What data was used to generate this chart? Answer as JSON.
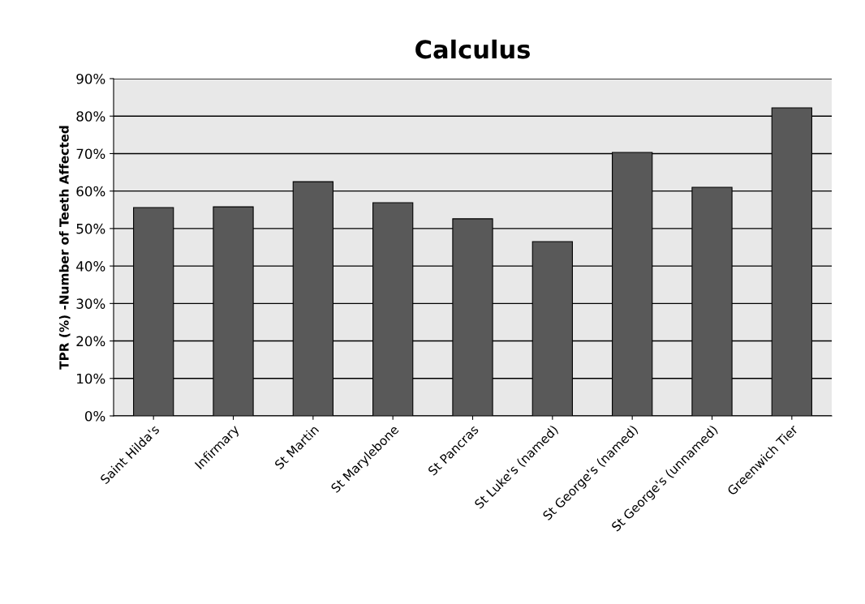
{
  "chart_data": {
    "type": "bar",
    "title": "Calculus",
    "ylabel": "TPR (%) -Number of Teeth Affected",
    "categories": [
      "Saint Hilda's",
      "Infirmary",
      "St Martin",
      "St Marylebone",
      "St Pancras",
      "St Luke's (named)",
      "St George's (named)",
      "St George's (unnamed)",
      "Greenwich Tier"
    ],
    "values": [
      55.6,
      55.8,
      62.5,
      56.9,
      52.6,
      46.5,
      70.3,
      61.0,
      82.2
    ],
    "color": "#595959",
    "ylim": [
      0,
      90
    ],
    "yticks": [
      {
        "value": 0,
        "label": "0%"
      },
      {
        "value": 10,
        "label": "10%"
      },
      {
        "value": 20,
        "label": "20%"
      },
      {
        "value": 30,
        "label": "30%"
      },
      {
        "value": 40,
        "label": "40%"
      },
      {
        "value": 50,
        "label": "50%"
      },
      {
        "value": 60,
        "label": "60%"
      },
      {
        "value": 70,
        "label": "70%"
      },
      {
        "value": 80,
        "label": "80%"
      },
      {
        "value": 90,
        "label": "90%"
      }
    ],
    "grid": "y",
    "legend": false
  }
}
